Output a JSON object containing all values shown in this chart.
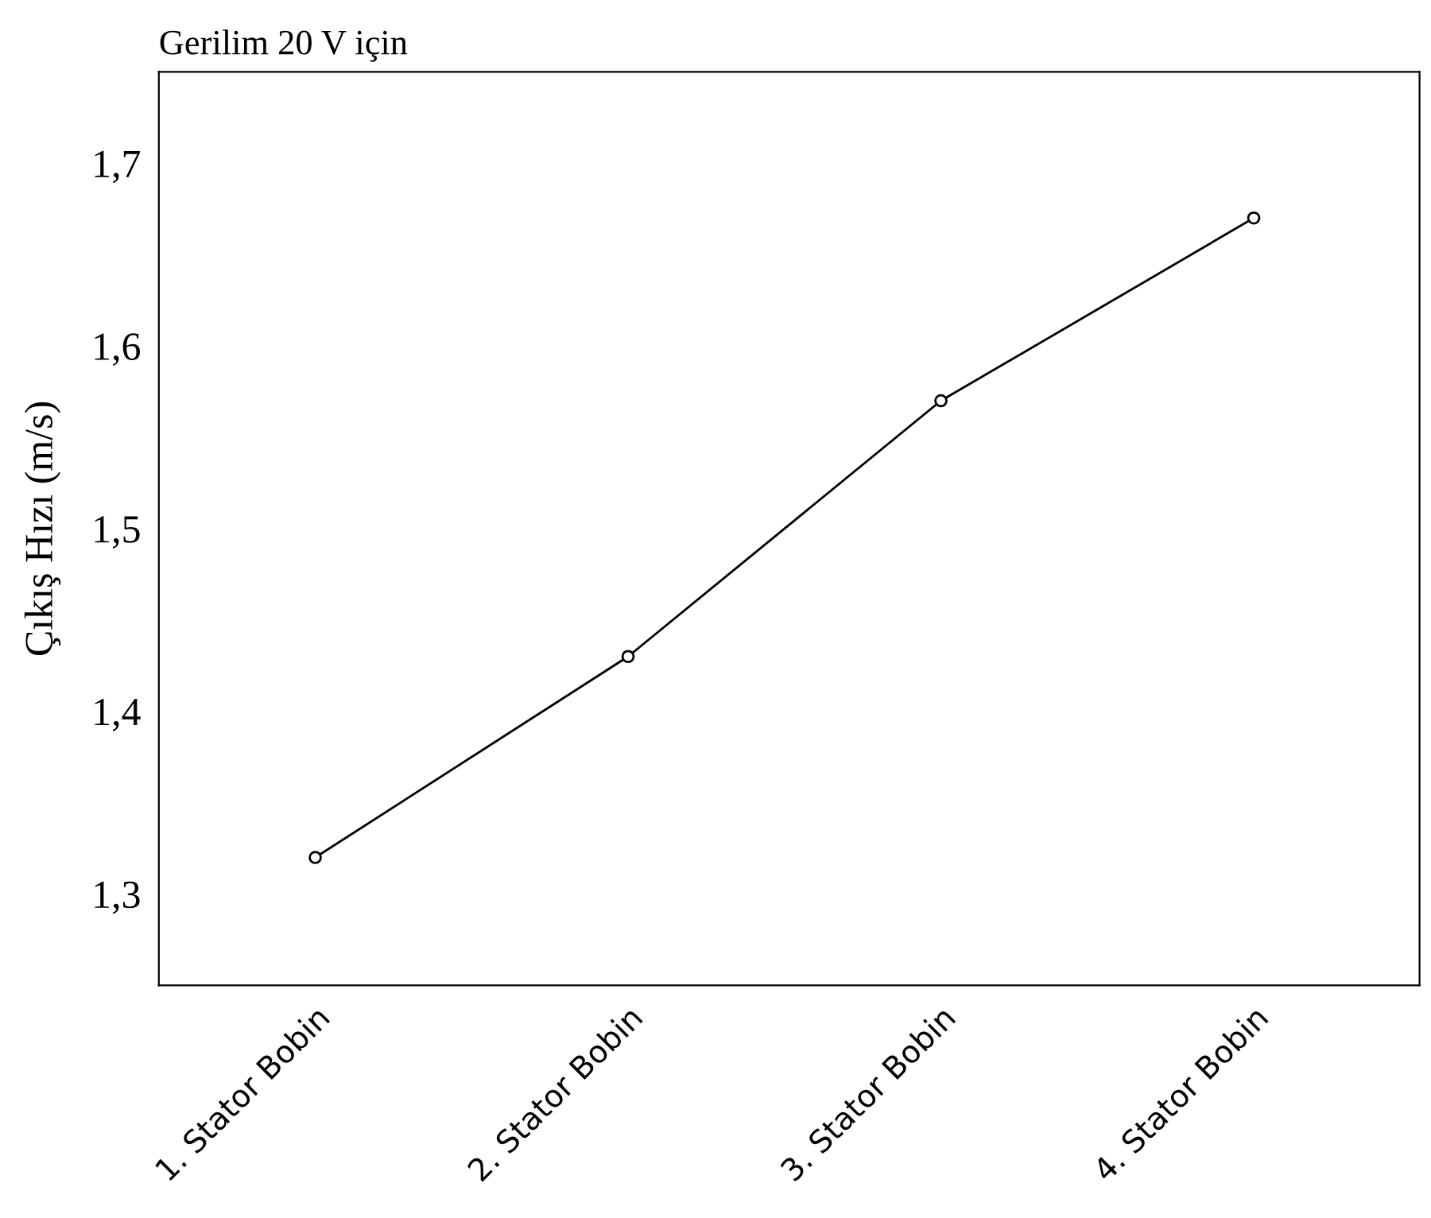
{
  "chart_data": {
    "type": "line",
    "title": "Gerilim 20 V için",
    "ylabel": "Çıkış Hızı (m/s)",
    "categories": [
      "1. Stator Bobin",
      "2. Stator Bobin",
      "3. Stator Bobin",
      "4. Stator Bobin"
    ],
    "series": [
      {
        "color": "#000000",
        "values": [
          1.32,
          1.43,
          1.57,
          1.67
        ]
      }
    ],
    "ylim": [
      1.25,
      1.75
    ],
    "yticks": [
      {
        "value": 1.3,
        "label": "1,3"
      },
      {
        "value": 1.4,
        "label": "1,4"
      },
      {
        "value": 1.5,
        "label": "1,5"
      },
      {
        "value": 1.6,
        "label": "1,6"
      },
      {
        "value": 1.7,
        "label": "1,7"
      }
    ],
    "marker": "circle",
    "line_style": "solid",
    "grid": false,
    "legend": false
  }
}
